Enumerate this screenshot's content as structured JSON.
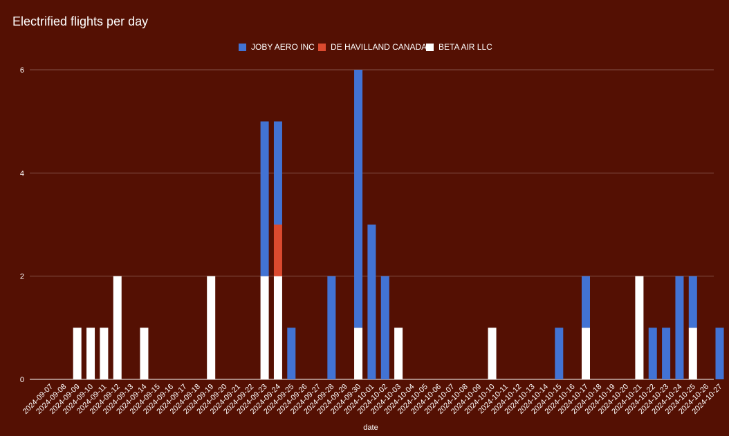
{
  "chart_data": {
    "type": "bar",
    "stacked": true,
    "title": "Electrified flights per day",
    "xlabel": "date",
    "ylabel": "",
    "ylim": [
      0,
      6
    ],
    "yticks": [
      0,
      2,
      4,
      6
    ],
    "grid": true,
    "legend_position": "top",
    "categories": [
      "2024-09-07",
      "2024-09-08",
      "2024-09-09",
      "2024-09-10",
      "2024-09-11",
      "2024-09-12",
      "2024-09-13",
      "2024-09-14",
      "2024-09-15",
      "2024-09-16",
      "2024-09-17",
      "2024-09-18",
      "2024-09-19",
      "2024-09-20",
      "2024-09-21",
      "2024-09-22",
      "2024-09-23",
      "2024-09-24",
      "2024-09-25",
      "2024-09-26",
      "2024-09-27",
      "2024-09-28",
      "2024-09-29",
      "2024-09-30",
      "2024-10-01",
      "2024-10-02",
      "2024-10-03",
      "2024-10-04",
      "2024-10-05",
      "2024-10-06",
      "2024-10-07",
      "2024-10-08",
      "2024-10-09",
      "2024-10-10",
      "2024-10-11",
      "2024-10-12",
      "2024-10-13",
      "2024-10-14",
      "2024-10-15",
      "2024-10-16",
      "2024-10-17",
      "2024-10-18",
      "2024-10-19",
      "2024-10-20",
      "2024-10-21",
      "2024-10-22",
      "2024-10-23",
      "2024-10-24",
      "2024-10-25",
      "2024-10-26",
      "2024-10-27"
    ],
    "series": [
      {
        "name": "BETA AIR LLC",
        "color": "#ffffff",
        "values": [
          0,
          0,
          1,
          1,
          1,
          2,
          0,
          1,
          0,
          0,
          0,
          0,
          2,
          0,
          0,
          0,
          2,
          2,
          0,
          0,
          0,
          0,
          0,
          1,
          0,
          0,
          1,
          0,
          0,
          0,
          0,
          0,
          0,
          1,
          0,
          0,
          0,
          0,
          0,
          0,
          1,
          0,
          0,
          0,
          2,
          0,
          0,
          0,
          1,
          0,
          0
        ]
      },
      {
        "name": "DE HAVILLAND CANADA",
        "color": "#dc4a2f",
        "values": [
          0,
          0,
          0,
          0,
          0,
          0,
          0,
          0,
          0,
          0,
          0,
          0,
          0,
          0,
          0,
          0,
          0,
          1,
          0,
          0,
          0,
          0,
          0,
          0,
          0,
          0,
          0,
          0,
          0,
          0,
          0,
          0,
          0,
          0,
          0,
          0,
          0,
          0,
          0,
          0,
          0,
          0,
          0,
          0,
          0,
          0,
          0,
          0,
          0,
          0,
          0
        ]
      },
      {
        "name": "JOBY AERO INC",
        "color": "#4273d4",
        "values": [
          0,
          0,
          0,
          0,
          0,
          0,
          0,
          0,
          0,
          0,
          0,
          0,
          0,
          0,
          0,
          0,
          3,
          2,
          1,
          0,
          0,
          2,
          0,
          5,
          3,
          2,
          0,
          0,
          0,
          0,
          0,
          0,
          0,
          0,
          0,
          0,
          0,
          0,
          1,
          0,
          1,
          0,
          0,
          0,
          0,
          1,
          1,
          2,
          1,
          0,
          1
        ]
      }
    ],
    "legend_order": [
      "JOBY AERO INC",
      "DE HAVILLAND CANADA",
      "BETA AIR LLC"
    ]
  }
}
